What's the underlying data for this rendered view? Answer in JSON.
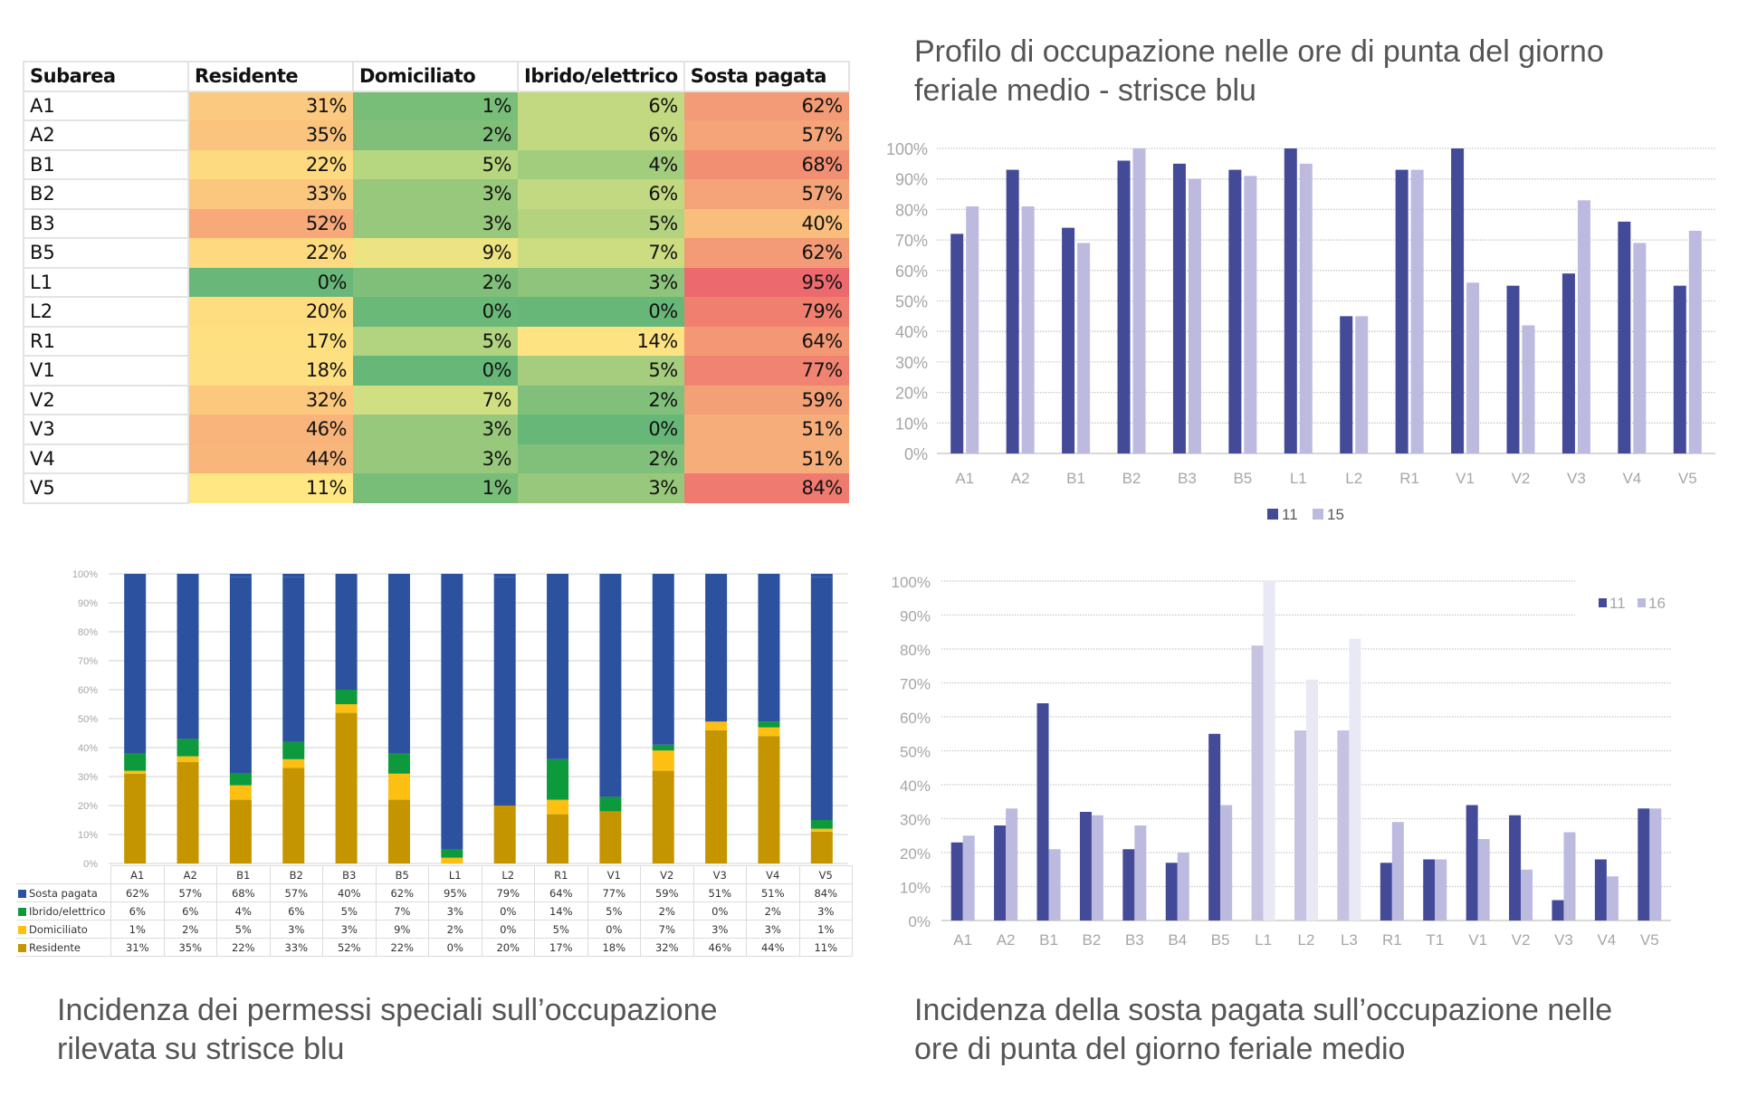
{
  "heat_table": {
    "headers": [
      "Subarea",
      "Residente",
      "Domiciliato",
      "Ibrido/elettrico",
      "Sosta pagata"
    ],
    "rows": [
      {
        "subarea": "A1",
        "values": [
          "31%",
          "1%",
          "6%",
          "62%"
        ],
        "colors": [
          "#fbc97f",
          "#78bd78",
          "#c3d981",
          "#f39a76"
        ]
      },
      {
        "subarea": "A2",
        "values": [
          "35%",
          "2%",
          "6%",
          "57%"
        ],
        "colors": [
          "#fac47e",
          "#7fbf7a",
          "#c3d981",
          "#f4a478"
        ]
      },
      {
        "subarea": "B1",
        "values": [
          "22%",
          "5%",
          "4%",
          "68%"
        ],
        "colors": [
          "#fdd980",
          "#b7d680",
          "#a2cd7d",
          "#f28f73"
        ]
      },
      {
        "subarea": "B2",
        "values": [
          "33%",
          "3%",
          "6%",
          "57%"
        ],
        "colors": [
          "#fbc77e",
          "#98c87c",
          "#c3d981",
          "#f4a478"
        ]
      },
      {
        "subarea": "B3",
        "values": [
          "52%",
          "3%",
          "5%",
          "40%"
        ],
        "colors": [
          "#f7a97a",
          "#98c87c",
          "#b3d37f",
          "#f9bd7c"
        ]
      },
      {
        "subarea": "B5",
        "values": [
          "22%",
          "9%",
          "7%",
          "62%"
        ],
        "colors": [
          "#fdd980",
          "#ece482",
          "#cbdc81",
          "#f39a76"
        ]
      },
      {
        "subarea": "L1",
        "values": [
          "0%",
          "2%",
          "3%",
          "95%"
        ],
        "colors": [
          "#69b879",
          "#7fbf7a",
          "#8ec47b",
          "#ec6a6e"
        ]
      },
      {
        "subarea": "L2",
        "values": [
          "20%",
          "0%",
          "0%",
          "79%"
        ],
        "colors": [
          "#fedd81",
          "#6ab978",
          "#66b778",
          "#f07f70"
        ]
      },
      {
        "subarea": "R1",
        "values": [
          "17%",
          "5%",
          "14%",
          "64%"
        ],
        "colors": [
          "#fee081",
          "#b2d37f",
          "#fee382",
          "#f39774"
        ]
      },
      {
        "subarea": "V1",
        "values": [
          "18%",
          "0%",
          "5%",
          "77%"
        ],
        "colors": [
          "#fedf81",
          "#66b778",
          "#a6cd7e",
          "#f08371"
        ]
      },
      {
        "subarea": "V2",
        "values": [
          "32%",
          "7%",
          "2%",
          "59%"
        ],
        "colors": [
          "#fbc87e",
          "#d0df82",
          "#80c07a",
          "#f4a077"
        ]
      },
      {
        "subarea": "V3",
        "values": [
          "46%",
          "3%",
          "0%",
          "51%"
        ],
        "colors": [
          "#f8b47b",
          "#98c87c",
          "#66b778",
          "#f6ad79"
        ]
      },
      {
        "subarea": "V4",
        "values": [
          "44%",
          "3%",
          "2%",
          "51%"
        ],
        "colors": [
          "#f8b67b",
          "#98c87c",
          "#80c07a",
          "#f6ad79"
        ]
      },
      {
        "subarea": "V5",
        "values": [
          "11%",
          "1%",
          "3%",
          "84%"
        ],
        "colors": [
          "#ffe783",
          "#78bd78",
          "#98c87c",
          "#ef7a70"
        ]
      }
    ]
  },
  "captions": {
    "top_right_title_line1": "Profilo di occupazione nelle ore di punta del giorno",
    "top_right_title_line2": "feriale medio - strisce blu",
    "bottom_left_line1": "Incidenza dei permessi speciali sull’occupazione",
    "bottom_left_line2": "rilevata su strisce blu",
    "bottom_right_line1": "Incidenza della sosta pagata sull’occupazione nelle",
    "bottom_right_line2": "ore di punta del giorno feriale medio"
  },
  "chart_data": [
    {
      "id": "occupancy-profile",
      "type": "bar",
      "title": "Profilo di occupazione nelle ore di punta del giorno feriale medio - strisce blu",
      "categories": [
        "A1",
        "A2",
        "B1",
        "B2",
        "B3",
        "B5",
        "L1",
        "L2",
        "R1",
        "V1",
        "V2",
        "V3",
        "V4",
        "V5"
      ],
      "series": [
        {
          "name": "11",
          "color": "#434a98",
          "values": [
            72,
            93,
            74,
            96,
            95,
            93,
            100,
            45,
            93,
            100,
            55,
            59,
            76,
            55
          ]
        },
        {
          "name": "15",
          "color": "#bcbadf",
          "values": [
            81,
            81,
            69,
            100,
            90,
            91,
            95,
            45,
            93,
            56,
            42,
            83,
            69,
            73
          ]
        }
      ],
      "ylim": [
        0,
        100
      ],
      "yticks": [
        "0%",
        "10%",
        "20%",
        "30%",
        "40%",
        "50%",
        "60%",
        "70%",
        "80%",
        "90%",
        "100%"
      ],
      "xlabel": "",
      "ylabel": "",
      "grid": true,
      "legend": "bottom-center"
    },
    {
      "id": "special-permits-stacked",
      "type": "bar",
      "stacked": true,
      "title": "Incidenza dei permessi speciali sull’occupazione rilevata su strisce blu",
      "categories": [
        "A1",
        "A2",
        "B1",
        "B2",
        "B3",
        "B5",
        "L1",
        "L2",
        "R1",
        "V1",
        "V2",
        "V3",
        "V4",
        "V5"
      ],
      "series": [
        {
          "name": "Residente",
          "color": "#c59500",
          "values": [
            31,
            35,
            22,
            33,
            52,
            22,
            0,
            20,
            17,
            18,
            32,
            46,
            44,
            11
          ]
        },
        {
          "name": "Domiciliato",
          "color": "#fcbf12",
          "values": [
            1,
            2,
            5,
            3,
            3,
            9,
            2,
            0,
            5,
            0,
            7,
            3,
            3,
            1
          ]
        },
        {
          "name": "Ibrido/elettrico",
          "color": "#0c9a3c",
          "values": [
            6,
            6,
            4,
            6,
            5,
            7,
            3,
            0,
            14,
            5,
            2,
            0,
            2,
            3
          ]
        },
        {
          "name": "Sosta pagata",
          "color": "#2c529f",
          "values": [
            62,
            57,
            68,
            57,
            40,
            62,
            95,
            79,
            64,
            77,
            59,
            51,
            51,
            84
          ]
        }
      ],
      "table_order": [
        "Sosta pagata",
        "Ibrido/elettrico",
        "Domiciliato",
        "Residente"
      ],
      "ylim": [
        0,
        100
      ],
      "yticks": [
        "0%",
        "10%",
        "20%",
        "30%",
        "40%",
        "50%",
        "60%",
        "70%",
        "80%",
        "90%",
        "100%"
      ],
      "grid": true,
      "legend": "data-table-below"
    },
    {
      "id": "paid-parking-incidence",
      "type": "bar",
      "title": "Incidenza della sosta pagata sull’occupazione nelle ore di punta del giorno feriale medio",
      "categories": [
        "A1",
        "A2",
        "B1",
        "B2",
        "B3",
        "B4",
        "B5",
        "L1",
        "L2",
        "L3",
        "R1",
        "T1",
        "V1",
        "V2",
        "V3",
        "V4",
        "V5"
      ],
      "series": [
        {
          "name": "11",
          "color": "#434a98",
          "values": [
            23,
            28,
            64,
            32,
            21,
            17,
            55,
            81,
            56,
            56,
            17,
            18,
            34,
            31,
            6,
            18,
            33
          ]
        },
        {
          "name": "16",
          "color": "#bcbadf",
          "values": [
            25,
            33,
            21,
            31,
            28,
            20,
            34,
            100,
            71,
            83,
            29,
            18,
            24,
            15,
            26,
            13,
            33
          ]
        }
      ],
      "faded_categories": [
        "L1",
        "L2",
        "L3"
      ],
      "ylim": [
        0,
        100
      ],
      "yticks": [
        "0%",
        "10%",
        "20%",
        "30%",
        "40%",
        "50%",
        "60%",
        "70%",
        "80%",
        "90%",
        "100%"
      ],
      "grid": true,
      "legend": "top-right"
    }
  ]
}
